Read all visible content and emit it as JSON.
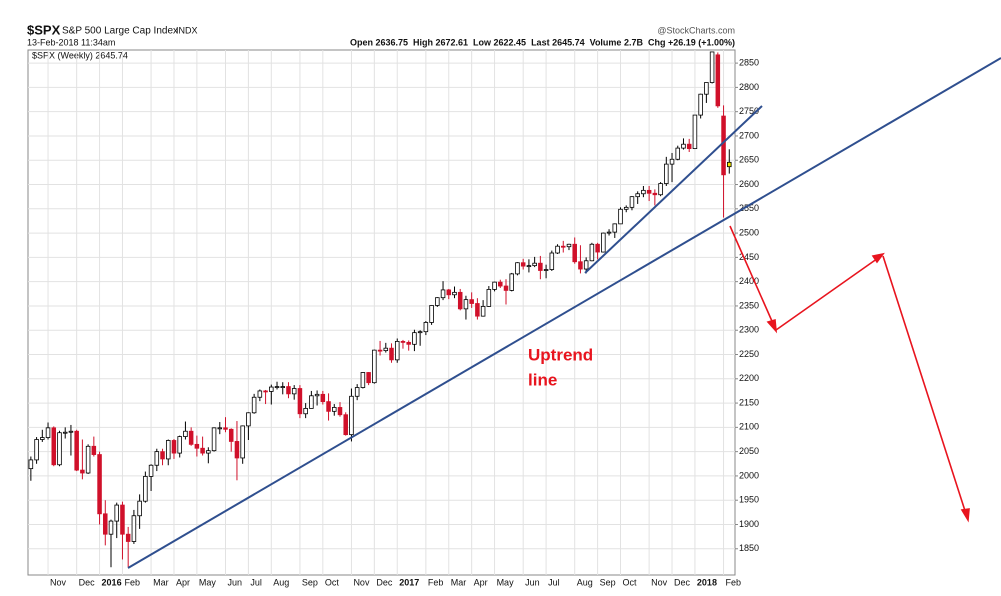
{
  "chart_data": {
    "type": "candlestick",
    "symbol": "$SPX",
    "title": "S&P 500 Large Cap Index",
    "exchange": "INDX",
    "timestamp": "13-Feb-2018 11:34am",
    "source": "@StockCharts.com",
    "quote_line": "Open 2636.75  High 2672.61  Low 2622.45  Last 2645.74  Volume 2.7B  Chg +26.19 (+1.00%)",
    "legend": "$SPX (Weekly) 2645.74",
    "annotations": [
      "Uptrend",
      "line"
    ],
    "up_color": "#000000",
    "down_color": "#d0102a",
    "last_color": "#f2e600",
    "ylim": [
      1796,
      2877
    ],
    "yticks": [
      1850,
      1900,
      1950,
      2000,
      2050,
      2100,
      2150,
      2200,
      2250,
      2300,
      2350,
      2400,
      2450,
      2500,
      2550,
      2600,
      2650,
      2700,
      2750,
      2800,
      2850
    ],
    "xlim": [
      -0.5,
      123
    ],
    "xticks": [
      {
        "value": 3,
        "label": "Nov"
      },
      {
        "value": 8,
        "label": "Dec"
      },
      {
        "value": 12,
        "label": "2016"
      },
      {
        "value": 16,
        "label": "Feb"
      },
      {
        "value": 21,
        "label": "Mar"
      },
      {
        "value": 25,
        "label": "Apr"
      },
      {
        "value": 29,
        "label": "May"
      },
      {
        "value": 34,
        "label": "Jun"
      },
      {
        "value": 38,
        "label": "Jul"
      },
      {
        "value": 42,
        "label": "Aug"
      },
      {
        "value": 47,
        "label": "Sep"
      },
      {
        "value": 51,
        "label": "Oct"
      },
      {
        "value": 56,
        "label": "Nov"
      },
      {
        "value": 60,
        "label": "Dec"
      },
      {
        "value": 64,
        "label": "2017"
      },
      {
        "value": 69,
        "label": "Feb"
      },
      {
        "value": 73,
        "label": "Mar"
      },
      {
        "value": 77,
        "label": "Apr"
      },
      {
        "value": 81,
        "label": "May"
      },
      {
        "value": 86,
        "label": "Jun"
      },
      {
        "value": 90,
        "label": "Jul"
      },
      {
        "value": 95,
        "label": "Aug"
      },
      {
        "value": 99,
        "label": "Sep"
      },
      {
        "value": 103,
        "label": "Oct"
      },
      {
        "value": 108,
        "label": "Nov"
      },
      {
        "value": 112,
        "label": "Dec"
      },
      {
        "value": 116,
        "label": "2018"
      },
      {
        "value": 121,
        "label": "Feb"
      }
    ],
    "grid": true,
    "ohlc": [
      [
        2015,
        2040,
        1990,
        2033
      ],
      [
        2033,
        2080,
        2025,
        2075
      ],
      [
        2075,
        2095,
        2070,
        2079
      ],
      [
        2079,
        2110,
        2075,
        2099
      ],
      [
        2099,
        2102,
        2020,
        2023
      ],
      [
        2023,
        2093,
        2020,
        2089
      ],
      [
        2089,
        2100,
        2077,
        2090
      ],
      [
        2090,
        2105,
        2042,
        2092
      ],
      [
        2092,
        2095,
        2010,
        2012
      ],
      [
        2012,
        2075,
        1993,
        2006
      ],
      [
        2006,
        2065,
        2004,
        2061
      ],
      [
        2061,
        2081,
        2040,
        2044
      ],
      [
        2044,
        2050,
        1900,
        1922
      ],
      [
        1922,
        1950,
        1857,
        1880
      ],
      [
        1880,
        1910,
        1812,
        1907
      ],
      [
        1907,
        1945,
        1872,
        1940
      ],
      [
        1940,
        1947,
        1828,
        1880
      ],
      [
        1880,
        1895,
        1812,
        1865
      ],
      [
        1865,
        1930,
        1860,
        1918
      ],
      [
        1918,
        1962,
        1891,
        1948
      ],
      [
        1948,
        2009,
        1945,
        1999
      ],
      [
        1999,
        2024,
        1969,
        2022
      ],
      [
        2022,
        2056,
        2010,
        2050
      ],
      [
        2050,
        2056,
        2022,
        2035
      ],
      [
        2035,
        2075,
        2022,
        2073
      ],
      [
        2073,
        2076,
        2035,
        2047
      ],
      [
        2047,
        2083,
        2038,
        2081
      ],
      [
        2081,
        2112,
        2075,
        2092
      ],
      [
        2092,
        2100,
        2062,
        2065
      ],
      [
        2065,
        2083,
        2040,
        2057
      ],
      [
        2057,
        2081,
        2042,
        2047
      ],
      [
        2047,
        2059,
        2026,
        2052
      ],
      [
        2052,
        2100,
        2050,
        2099
      ],
      [
        2099,
        2111,
        2086,
        2099
      ],
      [
        2099,
        2121,
        2090,
        2096
      ],
      [
        2096,
        2098,
        2050,
        2071
      ],
      [
        2071,
        2113,
        1991,
        2037
      ],
      [
        2037,
        2104,
        2025,
        2103
      ],
      [
        2103,
        2131,
        2074,
        2130
      ],
      [
        2130,
        2169,
        2128,
        2162
      ],
      [
        2162,
        2178,
        2154,
        2175
      ],
      [
        2175,
        2177,
        2148,
        2174
      ],
      [
        2174,
        2188,
        2147,
        2183
      ],
      [
        2183,
        2194,
        2178,
        2184
      ],
      [
        2184,
        2193,
        2168,
        2184
      ],
      [
        2184,
        2193,
        2160,
        2169
      ],
      [
        2169,
        2187,
        2157,
        2180
      ],
      [
        2180,
        2187,
        2119,
        2128
      ],
      [
        2128,
        2150,
        2119,
        2139
      ],
      [
        2139,
        2175,
        2139,
        2165
      ],
      [
        2165,
        2176,
        2145,
        2168
      ],
      [
        2168,
        2175,
        2147,
        2153
      ],
      [
        2153,
        2170,
        2114,
        2133
      ],
      [
        2133,
        2148,
        2124,
        2141
      ],
      [
        2141,
        2152,
        2122,
        2126
      ],
      [
        2126,
        2131,
        2083,
        2085
      ],
      [
        2085,
        2180,
        2071,
        2164
      ],
      [
        2164,
        2189,
        2156,
        2182
      ],
      [
        2182,
        2214,
        2180,
        2213
      ],
      [
        2213,
        2214,
        2187,
        2192
      ],
      [
        2192,
        2260,
        2190,
        2259
      ],
      [
        2259,
        2278,
        2248,
        2258
      ],
      [
        2258,
        2274,
        2254,
        2263
      ],
      [
        2263,
        2273,
        2233,
        2239
      ],
      [
        2239,
        2283,
        2233,
        2277
      ],
      [
        2277,
        2280,
        2262,
        2275
      ],
      [
        2275,
        2279,
        2258,
        2271
      ],
      [
        2271,
        2301,
        2257,
        2295
      ],
      [
        2295,
        2300,
        2268,
        2297
      ],
      [
        2297,
        2319,
        2290,
        2316
      ],
      [
        2316,
        2352,
        2311,
        2351
      ],
      [
        2351,
        2368,
        2348,
        2367
      ],
      [
        2367,
        2401,
        2362,
        2383
      ],
      [
        2383,
        2385,
        2364,
        2373
      ],
      [
        2373,
        2390,
        2366,
        2378
      ],
      [
        2378,
        2385,
        2341,
        2344
      ],
      [
        2344,
        2371,
        2322,
        2363
      ],
      [
        2363,
        2378,
        2346,
        2355
      ],
      [
        2355,
        2366,
        2322,
        2329
      ],
      [
        2329,
        2362,
        2328,
        2349
      ],
      [
        2349,
        2391,
        2348,
        2384
      ],
      [
        2384,
        2400,
        2380,
        2399
      ],
      [
        2399,
        2404,
        2387,
        2391
      ],
      [
        2391,
        2405,
        2353,
        2382
      ],
      [
        2382,
        2418,
        2380,
        2416
      ],
      [
        2416,
        2440,
        2413,
        2439
      ],
      [
        2439,
        2447,
        2425,
        2432
      ],
      [
        2432,
        2446,
        2419,
        2433
      ],
      [
        2433,
        2451,
        2430,
        2438
      ],
      [
        2438,
        2453,
        2405,
        2423
      ],
      [
        2423,
        2435,
        2407,
        2425
      ],
      [
        2425,
        2464,
        2422,
        2459
      ],
      [
        2459,
        2477,
        2457,
        2473
      ],
      [
        2473,
        2484,
        2460,
        2472
      ],
      [
        2472,
        2478,
        2465,
        2477
      ],
      [
        2477,
        2491,
        2437,
        2441
      ],
      [
        2441,
        2475,
        2417,
        2426
      ],
      [
        2426,
        2450,
        2417,
        2443
      ],
      [
        2443,
        2480,
        2442,
        2477
      ],
      [
        2477,
        2480,
        2446,
        2461
      ],
      [
        2461,
        2501,
        2460,
        2500
      ],
      [
        2500,
        2508,
        2495,
        2502
      ],
      [
        2502,
        2520,
        2490,
        2519
      ],
      [
        2519,
        2553,
        2519,
        2549
      ],
      [
        2549,
        2557,
        2543,
        2553
      ],
      [
        2553,
        2576,
        2547,
        2575
      ],
      [
        2575,
        2586,
        2560,
        2581
      ],
      [
        2581,
        2597,
        2574,
        2588
      ],
      [
        2588,
        2597,
        2566,
        2582
      ],
      [
        2582,
        2590,
        2557,
        2579
      ],
      [
        2579,
        2605,
        2576,
        2602
      ],
      [
        2602,
        2657,
        2597,
        2642
      ],
      [
        2642,
        2665,
        2605,
        2652
      ],
      [
        2652,
        2680,
        2650,
        2675
      ],
      [
        2675,
        2695,
        2672,
        2683
      ],
      [
        2683,
        2694,
        2667,
        2674
      ],
      [
        2674,
        2743,
        2673,
        2743
      ],
      [
        2743,
        2787,
        2736,
        2786
      ],
      [
        2786,
        2810,
        2768,
        2810
      ],
      [
        2810,
        2873,
        2808,
        2873
      ],
      [
        2867,
        2872,
        2758,
        2762
      ],
      [
        2741,
        2763,
        2532,
        2620
      ],
      [
        2636.75,
        2672.61,
        2622.45,
        2645.74
      ]
    ]
  }
}
